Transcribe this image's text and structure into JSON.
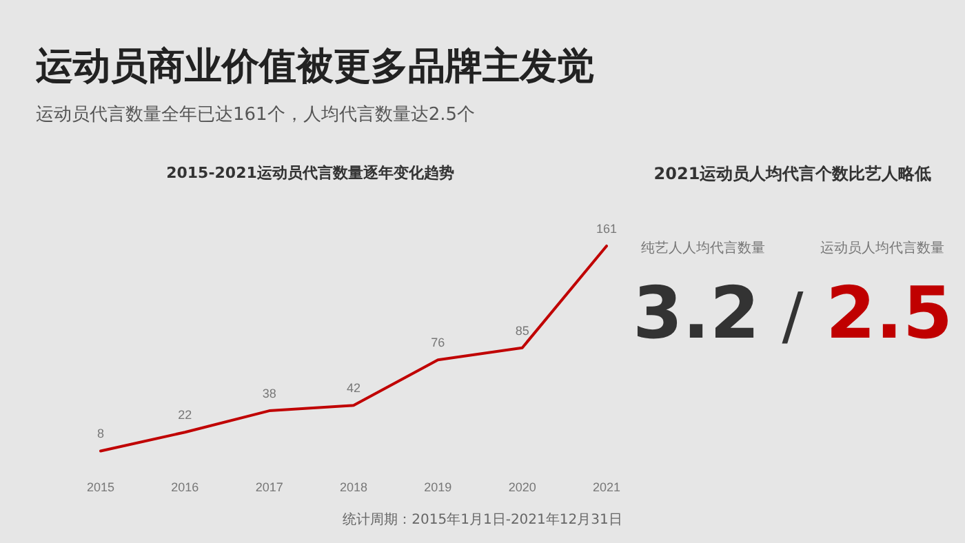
{
  "chart_data": [
    {
      "type": "line",
      "title": "运动员商业价值被更多品牌主发觉",
      "subtitle": "运动员代言数量全年已达161个，人均代言数量达2.5个",
      "annotations": [
        "2015-2021运动员代言数量逐年变化趋势",
        "统计周期：2015年1月1日-2021年12月31日"
      ],
      "categories": [
        "2015",
        "2016",
        "2017",
        "2018",
        "2019",
        "2020",
        "2021"
      ],
      "series": [
        {
          "color": "#c00000",
          "values": [
            8,
            22,
            38,
            42,
            76,
            85,
            161
          ]
        }
      ],
      "data_labels": true,
      "marker": "none",
      "line_style": "solid",
      "grid": false,
      "tick_labels": "x"
    },
    {
      "type": "other",
      "title": "2021运动员人均代言个数比艺人略低",
      "categories": [
        "纯艺人人均代言数量",
        "运动员人均代言数量"
      ],
      "values": [
        3.2,
        2.5
      ],
      "colors": [
        "#333333",
        "#c00000"
      ],
      "data_labels": true,
      "annotations": [
        "/"
      ]
    }
  ]
}
